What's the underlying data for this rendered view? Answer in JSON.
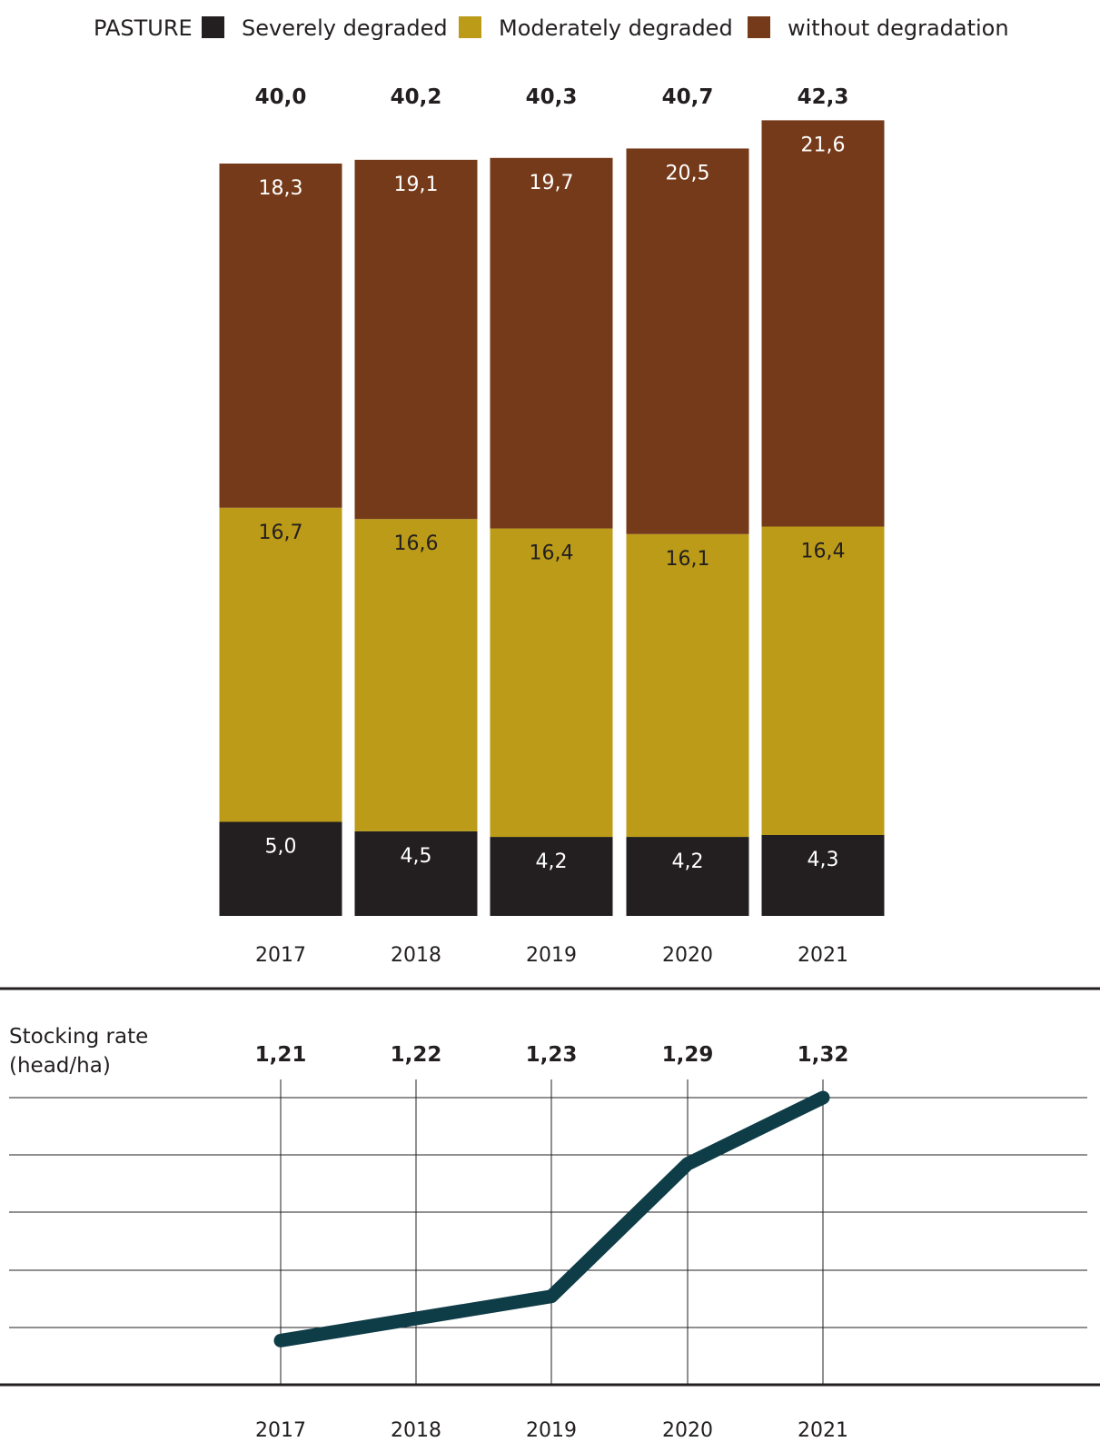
{
  "chart_data": [
    {
      "type": "bar",
      "stacked": true,
      "legend_title": "PASTURE",
      "legend_placement": "top",
      "categories": [
        "2017",
        "2018",
        "2019",
        "2020",
        "2021"
      ],
      "series": [
        {
          "name": "Severely degraded",
          "color": "#231f20",
          "label_color": "#ffffff",
          "values": [
            5.0,
            4.5,
            4.2,
            4.2,
            4.3
          ],
          "labels": [
            "5,0",
            "4,5",
            "4,2",
            "4,2",
            "4,3"
          ]
        },
        {
          "name": "Moderately degraded",
          "color": "#bb9b18",
          "label_color": "#231f20",
          "values": [
            16.7,
            16.6,
            16.4,
            16.1,
            16.4
          ],
          "labels": [
            "16,7",
            "16,6",
            "16,4",
            "16,1",
            "16,4"
          ]
        },
        {
          "name": "without degradation",
          "color": "#753a19",
          "label_color": "#ffffff",
          "values": [
            18.3,
            19.1,
            19.7,
            20.5,
            21.6
          ],
          "labels": [
            "18,3",
            "19,1",
            "19,7",
            "20,5",
            "21,6"
          ]
        }
      ],
      "totals": [
        40.0,
        40.2,
        40.3,
        40.7,
        42.3
      ],
      "total_labels": [
        "40,0",
        "40,2",
        "40,3",
        "40,7",
        "42,3"
      ],
      "grid": false
    },
    {
      "type": "line",
      "ylabel_lines": [
        "Stocking rate",
        "(head/ha)"
      ],
      "x": [
        "2017",
        "2018",
        "2019",
        "2020",
        "2021"
      ],
      "series": [
        {
          "color": "#0e3d47",
          "values": [
            1.21,
            1.22,
            1.23,
            1.29,
            1.32
          ],
          "labels": [
            "1,21",
            "1,22",
            "1,23",
            "1,29",
            "1,32"
          ]
        }
      ],
      "ylim": [
        1.19,
        1.33
      ],
      "grid": true
    }
  ]
}
